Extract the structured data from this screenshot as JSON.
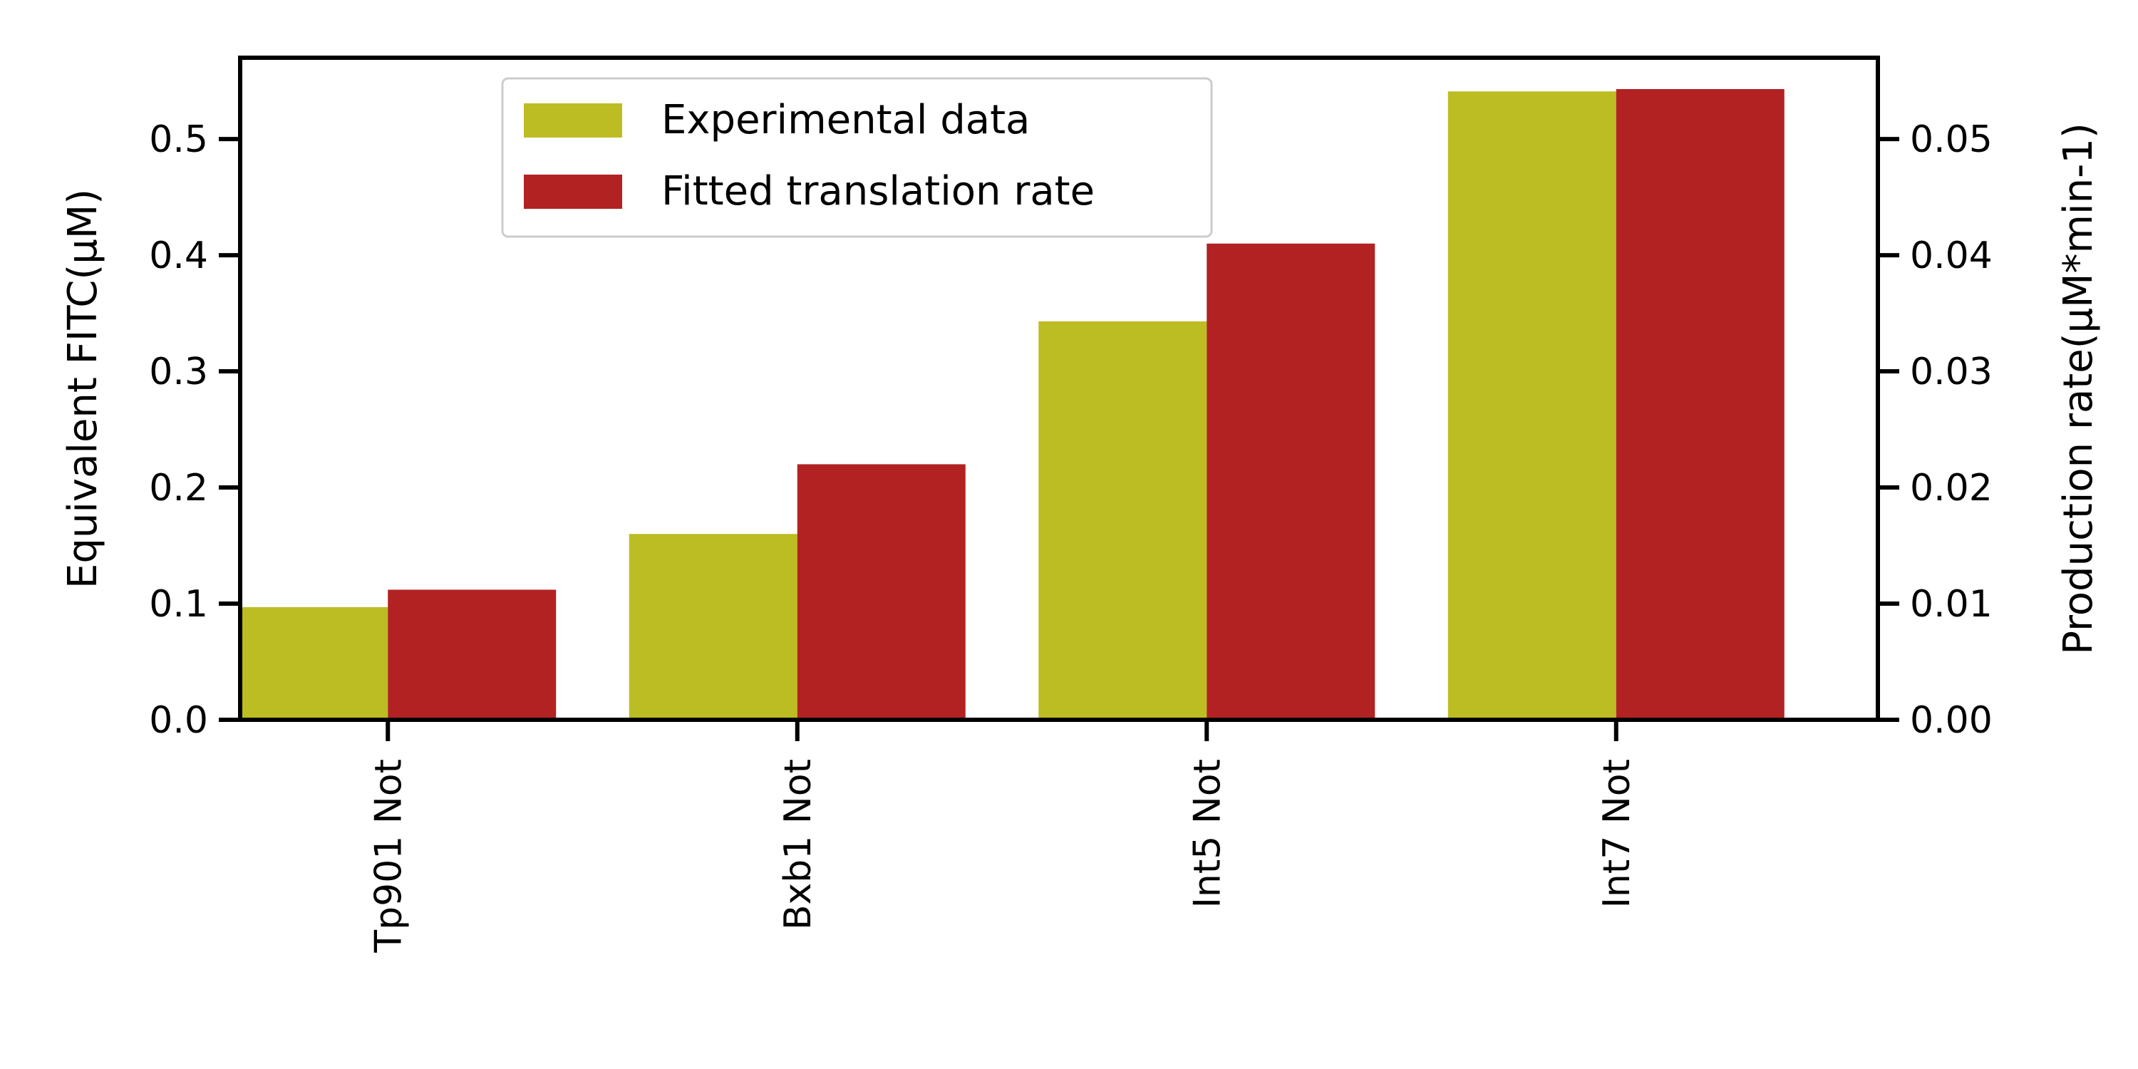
{
  "chart_data": {
    "type": "bar",
    "categories": [
      "Tp901 Not",
      "Bxb1 Not",
      "Int5 Not",
      "Int7 Not"
    ],
    "series": [
      {
        "name": "Experimental data",
        "axis": "left",
        "color": "#bcbd22",
        "values": [
          0.097,
          0.16,
          0.343,
          0.541
        ]
      },
      {
        "name": "Fitted translation rate",
        "axis": "right",
        "color": "#b22222",
        "values": [
          0.0112,
          0.022,
          0.041,
          0.0543
        ]
      }
    ],
    "ylabel": "Equivalent FITC(μM)",
    "y2label": "Production rate(μM*min-1)",
    "ylim": [
      0,
      0.57
    ],
    "y2lim": [
      0,
      0.057
    ],
    "yticks": [
      "0.0",
      "0.1",
      "0.2",
      "0.3",
      "0.4",
      "0.5"
    ],
    "y2ticks": [
      "0.00",
      "0.01",
      "0.02",
      "0.03",
      "0.04",
      "0.05"
    ],
    "legend_position": "top-left",
    "grid": false
  }
}
